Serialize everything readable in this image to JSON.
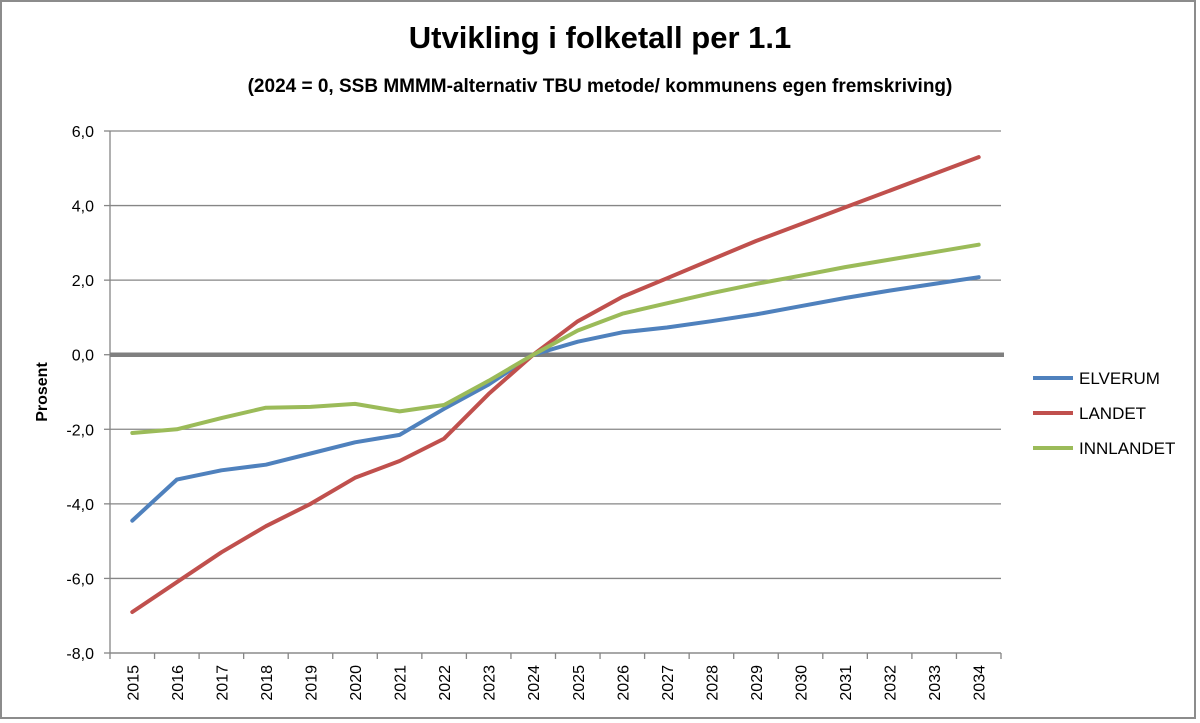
{
  "chart_data": {
    "type": "line",
    "title": "Utvikling i folketall per 1.1",
    "subtitle": "(2024 = 0, SSB MMMM-alternativ TBU metode/ kommunens  egen fremskriving)",
    "xlabel": "",
    "ylabel": "Prosent",
    "ylim": [
      -8,
      6
    ],
    "ytick_step": 2,
    "grid": true,
    "legend_position": "right",
    "categories": [
      "2015",
      "2016",
      "2017",
      "2018",
      "2019",
      "2020",
      "2021",
      "2022",
      "2023",
      "2024",
      "2025",
      "2026",
      "2027",
      "2028",
      "2029",
      "2030",
      "2031",
      "2032",
      "2033",
      "2034"
    ],
    "series": [
      {
        "name": "ELVERUM",
        "color": "#4f81bd",
        "values": [
          -4.45,
          -3.35,
          -3.1,
          -2.95,
          -2.65,
          -2.35,
          -2.15,
          -1.45,
          -0.8,
          0.0,
          0.35,
          0.6,
          0.73,
          0.9,
          1.08,
          1.3,
          1.52,
          1.72,
          1.9,
          2.08
        ]
      },
      {
        "name": "LANDET",
        "color": "#c0504d",
        "values": [
          -6.9,
          -6.1,
          -5.3,
          -4.6,
          -4.0,
          -3.3,
          -2.85,
          -2.25,
          -1.05,
          0.0,
          0.9,
          1.55,
          2.05,
          2.55,
          3.05,
          3.5,
          3.95,
          4.4,
          4.85,
          5.3
        ]
      },
      {
        "name": "INNLANDET",
        "color": "#9bbb59",
        "values": [
          -2.1,
          -2.0,
          -1.7,
          -1.42,
          -1.4,
          -1.32,
          -1.52,
          -1.35,
          -0.7,
          0.0,
          0.65,
          1.1,
          1.38,
          1.65,
          1.9,
          2.12,
          2.35,
          2.55,
          2.75,
          2.95
        ]
      }
    ]
  }
}
